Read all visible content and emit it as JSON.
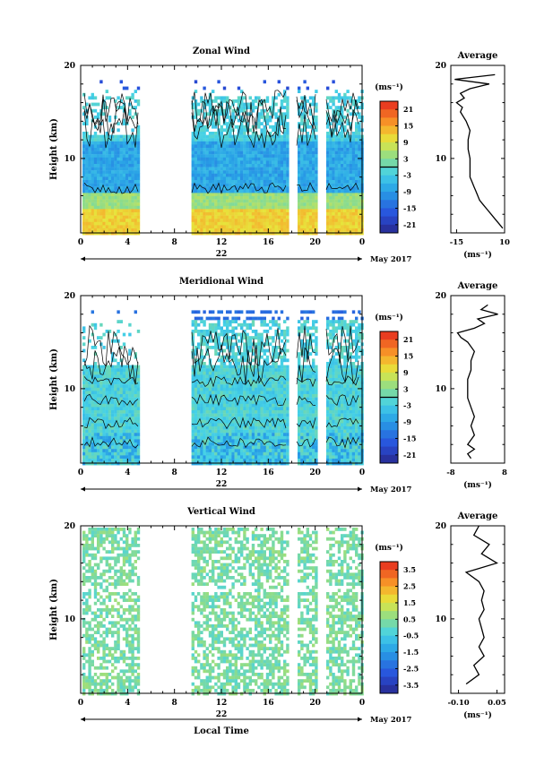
{
  "figure": {
    "xlabel": "Local Time",
    "date_label": "May 2017",
    "unit_label": "(ms⁻¹)",
    "avg_title": "Average",
    "avg_unit_label": "(ms⁻¹)"
  },
  "chart_data": [
    {
      "type": "heatmap",
      "title": "Zonal Wind",
      "ylabel": "Height (km)",
      "xlabel": "Local Time",
      "x_tick_labels": [
        "0",
        "4",
        "8",
        "12",
        "16",
        "20",
        "0"
      ],
      "x_range_hours": [
        0,
        24
      ],
      "day_label": "22",
      "y_ticks": [
        10,
        20
      ],
      "ylim": [
        2,
        20
      ],
      "colorbar": {
        "unit": "(ms⁻¹)",
        "ticks": [
          21,
          15,
          9,
          3,
          -3,
          -9,
          -15,
          -21
        ],
        "range": [
          -24,
          24
        ],
        "zero_contour": true
      },
      "data_gaps_hours": [
        [
          5.0,
          9.4
        ],
        [
          17.6,
          18.4
        ],
        [
          20.2,
          20.8
        ]
      ],
      "profile": {
        "title": "Average",
        "unit": "(ms⁻¹)",
        "x_tick_labels": [
          "-15",
          "10"
        ],
        "x_ticks": [
          -15,
          10
        ],
        "xlim": [
          -18,
          10
        ],
        "y_ticks": [
          10,
          20
        ],
        "ylim": [
          2,
          20
        ],
        "height_km": [
          2.5,
          3.0,
          3.5,
          4.0,
          4.5,
          5.0,
          5.5,
          6.0,
          6.5,
          7.0,
          7.5,
          8.0,
          9.0,
          10.0,
          11.0,
          12.0,
          13.0,
          14.0,
          15.0,
          15.5,
          16.0,
          16.5,
          17.0,
          17.5,
          18.0,
          18.5,
          19.0
        ],
        "wind_ms": [
          9,
          7,
          5,
          3,
          1,
          -1,
          -3,
          -4,
          -5,
          -6,
          -7,
          -8,
          -8,
          -8,
          -9,
          -9,
          -8,
          -10,
          -13,
          -12,
          -15,
          -11,
          -13,
          -8,
          2,
          -16,
          5
        ]
      }
    },
    {
      "type": "heatmap",
      "title": "Meridional Wind",
      "ylabel": "Height (km)",
      "xlabel": "Local Time",
      "x_tick_labels": [
        "0",
        "4",
        "8",
        "12",
        "16",
        "20",
        "0"
      ],
      "x_range_hours": [
        0,
        24
      ],
      "day_label": "22",
      "y_ticks": [
        10,
        20
      ],
      "ylim": [
        2,
        20
      ],
      "colorbar": {
        "unit": "(ms⁻¹)",
        "ticks": [
          21,
          15,
          9,
          3,
          -3,
          -9,
          -15,
          -21
        ],
        "range": [
          -24,
          24
        ],
        "zero_contour": true
      },
      "data_gaps_hours": [
        [
          5.0,
          9.4
        ],
        [
          17.6,
          18.4
        ],
        [
          20.2,
          20.8
        ]
      ],
      "profile": {
        "title": "Average",
        "unit": "(ms⁻¹)",
        "x_tick_labels": [
          "-8",
          "8"
        ],
        "x_ticks": [
          -8,
          8
        ],
        "xlim": [
          -8,
          8
        ],
        "y_ticks": [
          10,
          20
        ],
        "ylim": [
          2,
          20
        ],
        "height_km": [
          2.5,
          3.0,
          3.5,
          4.0,
          4.5,
          5.0,
          6.0,
          7.0,
          8.0,
          9.0,
          10.0,
          11.0,
          12.0,
          13.0,
          14.0,
          15.0,
          15.5,
          16.0,
          16.5,
          17.0,
          17.5,
          18.0,
          18.5,
          19.0
        ],
        "wind_ms": [
          -2,
          -3,
          -1,
          -3,
          -2,
          -1,
          -2,
          -1,
          -2,
          -3,
          -3,
          -3,
          -2,
          -2,
          -1,
          -3,
          -5,
          -6,
          -1,
          2,
          0,
          6,
          1,
          3
        ]
      }
    },
    {
      "type": "heatmap",
      "title": "Vertical Wind",
      "ylabel": "Height (km)",
      "xlabel": "Local Time",
      "x_tick_labels": [
        "0",
        "4",
        "8",
        "12",
        "16",
        "20",
        "0"
      ],
      "x_range_hours": [
        0,
        24
      ],
      "day_label": "22",
      "y_ticks": [
        10,
        20
      ],
      "ylim": [
        2,
        20
      ],
      "colorbar": {
        "unit": "(ms⁻¹)",
        "ticks": [
          3.5,
          2.5,
          1.5,
          0.5,
          -0.5,
          -1.5,
          -2.5,
          -3.5
        ],
        "range": [
          -4,
          4
        ],
        "zero_contour": false
      },
      "data_gaps_hours": [
        [
          5.0,
          9.4
        ],
        [
          17.6,
          18.4
        ],
        [
          20.2,
          20.8
        ]
      ],
      "profile": {
        "title": "Average",
        "unit": "(ms⁻¹)",
        "x_tick_labels": [
          "-0.10",
          "0.05"
        ],
        "x_ticks": [
          -0.1,
          0.05
        ],
        "xlim": [
          -0.13,
          0.08
        ],
        "y_ticks": [
          10,
          20
        ],
        "ylim": [
          2,
          20
        ],
        "height_km": [
          3,
          4,
          5,
          6,
          7,
          8,
          9,
          10,
          11,
          12,
          13,
          14,
          15,
          16,
          17,
          18,
          19,
          20
        ],
        "wind_ms": [
          -0.07,
          -0.02,
          -0.04,
          0.0,
          -0.02,
          0.0,
          -0.01,
          -0.02,
          0.0,
          -0.01,
          0.0,
          -0.02,
          -0.07,
          0.05,
          -0.01,
          0.02,
          -0.04,
          -0.02
        ]
      }
    }
  ]
}
